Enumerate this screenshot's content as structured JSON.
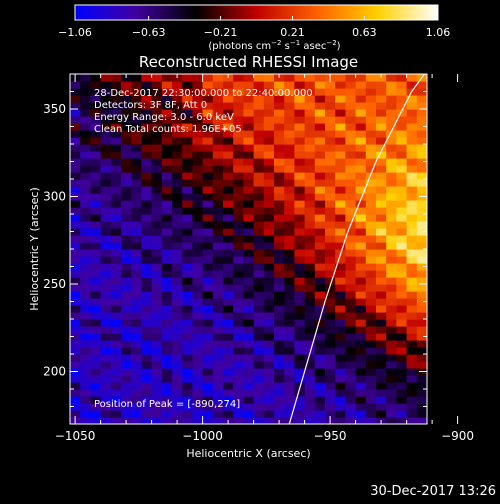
{
  "chart_data": {
    "type": "heatmap",
    "title": "Reconstructed RHESSI Image",
    "xlabel": "Heliocentric X (arcsec)",
    "ylabel": "Heliocentric Y (arcsec)",
    "xlim": [
      -1052,
      -912
    ],
    "ylim": [
      170,
      370
    ],
    "x_ticks": [
      -1050,
      -1000,
      -950,
      -900
    ],
    "x_tick_labels": [
      "−1050",
      "−1000",
      "−950",
      "−900"
    ],
    "y_ticks": [
      200,
      250,
      300,
      350
    ],
    "y_tick_labels": [
      "200",
      "250",
      "300",
      "350"
    ],
    "colorbar": {
      "range": [
        -1.06,
        1.06
      ],
      "ticks": [
        -1.06,
        -0.63,
        -0.21,
        0.21,
        0.63,
        1.06
      ],
      "tick_labels": [
        "−1.06",
        "−0.63",
        "−0.21",
        "0.21",
        "0.63",
        "1.06"
      ],
      "unit_parts": [
        "(photons cm",
        "−2",
        " s",
        "−1",
        " asec",
        "−2",
        ")"
      ],
      "colors": [
        "#0000ff",
        "#4000a0",
        "#000000",
        "#c00000",
        "#ff6000",
        "#ffd000",
        "#ffffff"
      ]
    },
    "annotations": [
      "28-Dec-2017 22:30:00.000 to 22:40:00.000",
      "Detectors: 3F 8F, Att 0",
      "Energy Range: 3.0 - 6.0 keV",
      "Clean    Total counts: 1.96E+05"
    ],
    "peak_label": "Position of Peak = [-890,274]",
    "peak": [
      -890,
      274
    ],
    "limb": [
      [
        -966,
        170
      ],
      [
        -960,
        200
      ],
      [
        -952,
        240
      ],
      [
        -943,
        280
      ],
      [
        -932,
        320
      ],
      [
        -918,
        360
      ],
      [
        -912,
        372
      ]
    ],
    "grid": false
  },
  "footer": {
    "timestamp": "30-Dec-2017 13:26"
  }
}
